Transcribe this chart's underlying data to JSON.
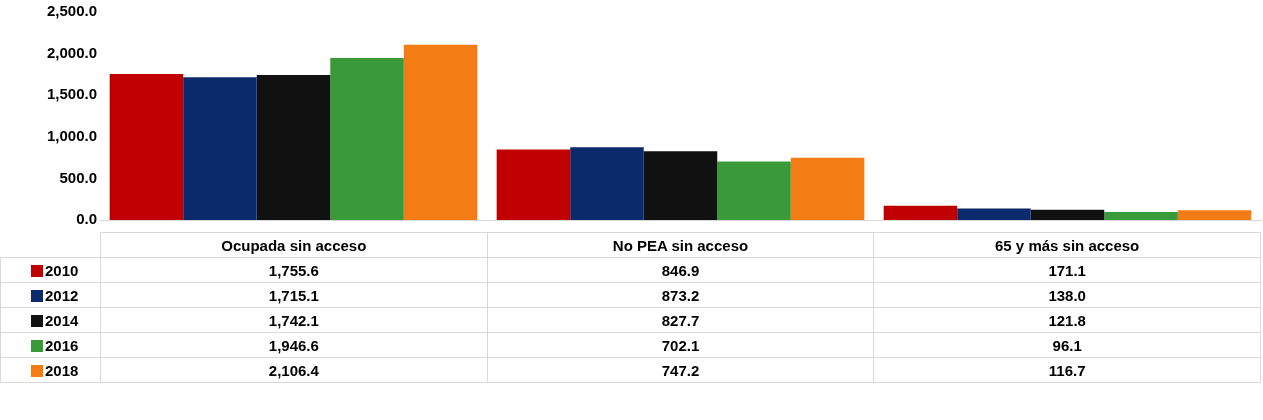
{
  "chart_data": {
    "type": "bar",
    "categories": [
      "Ocupada sin acceso",
      "No PEA sin acceso",
      "65 y más sin acceso"
    ],
    "series": [
      {
        "name": "2010",
        "color": "#c00000",
        "values": [
          1755.6,
          846.9,
          171.1
        ],
        "value_labels": [
          "1,755.6",
          "846.9",
          "171.1"
        ]
      },
      {
        "name": "2012",
        "color": "#0b2a6b",
        "values": [
          1715.1,
          873.2,
          138.0
        ],
        "value_labels": [
          "1,715.1",
          "873.2",
          "138.0"
        ]
      },
      {
        "name": "2014",
        "color": "#111111",
        "values": [
          1742.1,
          827.7,
          121.8
        ],
        "value_labels": [
          "1,742.1",
          "827.7",
          "121.8"
        ]
      },
      {
        "name": "2016",
        "color": "#3a9a3a",
        "values": [
          1946.6,
          702.1,
          96.1
        ],
        "value_labels": [
          "1,946.6",
          "702.1",
          "96.1"
        ]
      },
      {
        "name": "2018",
        "color": "#f47c14",
        "values": [
          2106.4,
          747.2,
          116.7
        ],
        "value_labels": [
          "2,106.4",
          "747.2",
          "116.7"
        ]
      }
    ],
    "ylim": [
      0,
      2500
    ],
    "yticks": [
      {
        "value": 0,
        "label": "0.0"
      },
      {
        "value": 500,
        "label": "500.0"
      },
      {
        "value": 1000,
        "label": "1,000.0"
      },
      {
        "value": 1500,
        "label": "1,500.0"
      },
      {
        "value": 2000,
        "label": "2,000.0"
      },
      {
        "value": 2500,
        "label": "2,500.0"
      }
    ],
    "grid": false,
    "legend": "bottom"
  }
}
